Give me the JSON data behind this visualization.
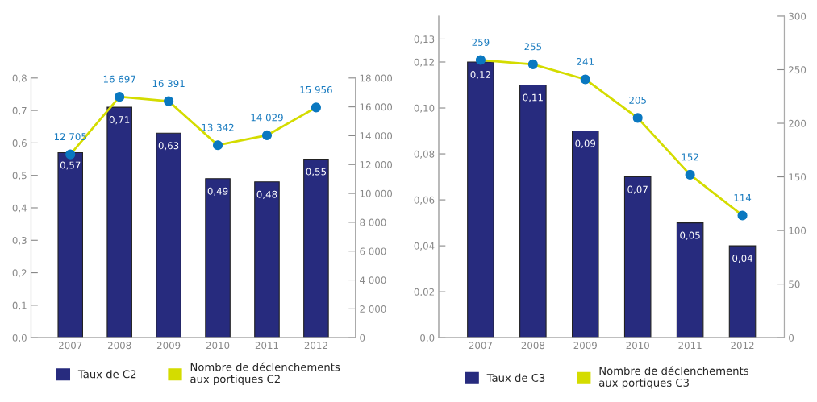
{
  "chart_data": [
    {
      "type": "bar",
      "categories": [
        "2007",
        "2008",
        "2009",
        "2010",
        "2011",
        "2012"
      ],
      "series": [
        {
          "name": "Taux de C2",
          "color": "#272b7e",
          "values": [
            0.57,
            0.71,
            0.63,
            0.49,
            0.48,
            0.55
          ],
          "value_labels": [
            "0,57",
            "0,71",
            "0,63",
            "0,49",
            "0,48",
            "0,55"
          ]
        },
        {
          "name": "Nombre de déclenchements aux portiques C2",
          "type": "line",
          "axis": "y2",
          "color": "#d4dc00",
          "colors": [
            "#0a78c0",
            "#0a78c0",
            "#0a78c0",
            "#0a78c0",
            "#0a78c0",
            "#0a78c0"
          ],
          "values": [
            12705,
            16697,
            16391,
            13342,
            14029,
            15956
          ],
          "value_labels": [
            "12 705",
            "16 697",
            "16 391",
            "13 342",
            "14 029",
            "15 956"
          ]
        }
      ],
      "ylim": [
        0,
        0.8
      ],
      "yticks": [
        {
          "value": 0,
          "label": "0,0"
        },
        {
          "value": 0.1,
          "label": "0,1"
        },
        {
          "value": 0.2,
          "label": "0,2"
        },
        {
          "value": 0.3,
          "label": "0,3"
        },
        {
          "value": 0.4,
          "label": "0,4"
        },
        {
          "value": 0.5,
          "label": "0,5"
        },
        {
          "value": 0.6,
          "label": "0,6"
        },
        {
          "value": 0.7,
          "label": "0,7"
        },
        {
          "value": 0.8,
          "label": "0,8"
        }
      ],
      "y2lim": [
        0,
        18000
      ],
      "y2ticks": [
        0,
        {
          "value": 2000,
          "label": "2 000"
        },
        {
          "value": 4000,
          "label": "4 000"
        },
        {
          "value": 6000,
          "label": "6 000"
        },
        {
          "value": 8000,
          "label": "8 000"
        },
        {
          "value": 10000,
          "label": "10 000"
        },
        {
          "value": 12000,
          "label": "12 000"
        },
        {
          "value": 14000,
          "label": "14 000"
        },
        {
          "value": 16000,
          "label": "16 000"
        },
        {
          "value": 18000,
          "label": "18 000"
        }
      ],
      "marker": "circle",
      "grid": false,
      "legend": "bottom"
    },
    {
      "type": "bar",
      "categories": [
        "2007",
        "2008",
        "2009",
        "2010",
        "2011",
        "2012"
      ],
      "series": [
        {
          "name": "Taux de C3",
          "color": "#272b7e",
          "values": [
            0.12,
            0.11,
            0.09,
            0.07,
            0.05,
            0.04
          ],
          "value_labels": [
            "0,12",
            "0,11",
            "0,09",
            "0,07",
            "0,05",
            "0,04"
          ]
        },
        {
          "name": "Nombre de déclenchements aux portiques C3",
          "type": "line",
          "axis": "y2",
          "color": "#d4dc00",
          "colors": [
            "#0a78c0",
            "#0a78c0",
            "#0a78c0",
            "#0a78c0",
            "#0a78c0",
            "#0a78c0"
          ],
          "values": [
            259,
            255,
            241,
            205,
            152,
            114
          ],
          "data_labels": true
        }
      ],
      "ylim": [
        0,
        0.14
      ],
      "yticks": [
        {
          "value": 0,
          "label": "0,0"
        },
        {
          "value": 0.02,
          "label": "0,02"
        },
        {
          "value": 0.04,
          "label": "0,04"
        },
        {
          "value": 0.06,
          "label": "0,06"
        },
        {
          "value": 0.08,
          "label": "0,08"
        },
        {
          "value": 0.1,
          "label": "0,10"
        },
        {
          "value": 0.12,
          "label": "0,12"
        },
        {
          "value": 0.13,
          "label": "0,13"
        }
      ],
      "y2lim": [
        0,
        300
      ],
      "y2ticks": [
        0,
        50,
        100,
        150,
        200,
        250,
        300
      ],
      "marker": "circle",
      "grid": false,
      "legend": "bottom"
    }
  ]
}
